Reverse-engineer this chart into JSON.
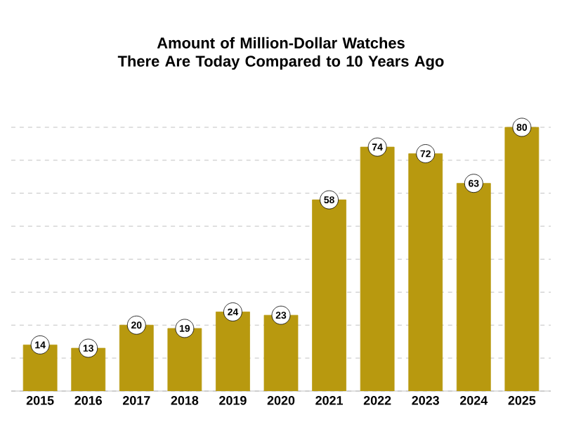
{
  "chart_data": {
    "type": "bar",
    "title": "Amount of Million-Dollar Watches\nThere Are Today Compared to 10 Years Ago",
    "categories": [
      "2015",
      "2016",
      "2017",
      "2018",
      "2019",
      "2020",
      "2021",
      "2022",
      "2023",
      "2024",
      "2025"
    ],
    "values": [
      14,
      13,
      20,
      19,
      24,
      23,
      58,
      74,
      72,
      63,
      80
    ],
    "color": "#b8990f",
    "data_labels": true,
    "grid": "y",
    "tick_labels": "x"
  }
}
